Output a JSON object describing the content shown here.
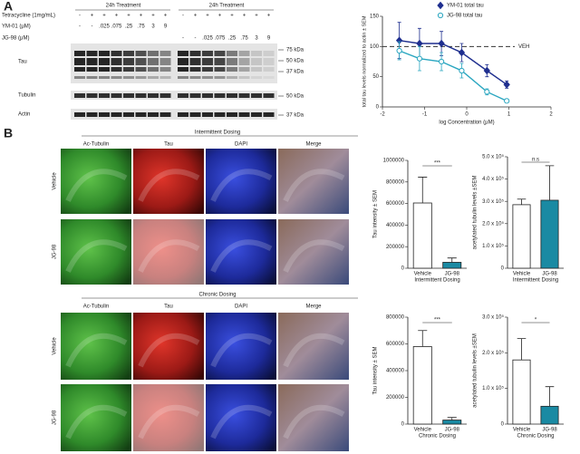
{
  "panels": [
    "A",
    "B"
  ],
  "blot": {
    "groups": [
      {
        "title": "24h Treatment",
        "tetracycline": [
          "-",
          "+",
          "+",
          "+",
          "+",
          "+",
          "+",
          "+"
        ],
        "ym01": [
          "-",
          "-",
          ".025",
          ".075",
          ".25",
          ".75",
          "3",
          "9"
        ]
      },
      {
        "title": "24h Treatment",
        "tetracycline": [
          "-",
          "+",
          "+",
          "+",
          "+",
          "+",
          "+",
          "+"
        ],
        "jg98": [
          "-",
          "-",
          ".025",
          ".075",
          ".25",
          ".75",
          "3",
          "9"
        ]
      }
    ],
    "row_labels": {
      "tetracycline": "Tetracycline (1mg/mL)",
      "ym01": "YM-01 (μM)",
      "jg98": "JG-98 (μM)"
    },
    "blots": [
      {
        "label": "Tau",
        "markers": [
          "75 kDa",
          "50 kDa",
          "37 kDa"
        ]
      },
      {
        "label": "Tubulin",
        "markers": [
          "50 kDa"
        ]
      },
      {
        "label": "Actin",
        "markers": [
          "37 kDa"
        ]
      }
    ]
  },
  "imaging": [
    {
      "title": "Intermittent Dosing",
      "columns": [
        "Ac-Tubulin",
        "Tau",
        "DAPI",
        "Merge"
      ],
      "rows": [
        "Vehicle",
        "JG-98"
      ]
    },
    {
      "title": "Chronic Dosing",
      "columns": [
        "Ac-Tubulin",
        "Tau",
        "DAPI",
        "Merge"
      ],
      "rows": [
        "Vehicle",
        "JG-98"
      ]
    }
  ],
  "chart_data": [
    {
      "type": "scatter",
      "x_label": "log Concentration (μM)",
      "y_label": "total tau levels normalized to actin ± SEM",
      "x": [
        -1.6,
        -1.12,
        -0.6,
        -0.12,
        0.48,
        0.95
      ],
      "series": [
        {
          "name": "YM-01 total tau",
          "color": "#1f2f8f",
          "marker": "diamond",
          "filled": true,
          "values": [
            110,
            105,
            105,
            90,
            60,
            37
          ],
          "errors": [
            30,
            25,
            20,
            15,
            10,
            6
          ]
        },
        {
          "name": "JG-98 total tau",
          "color": "#2aa6c0",
          "marker": "circle",
          "filled": false,
          "values": [
            93,
            80,
            75,
            60,
            25,
            10
          ],
          "errors": [
            15,
            20,
            15,
            12,
            5,
            3
          ]
        }
      ],
      "reference_line": {
        "value": 100,
        "label": "VEH"
      },
      "xlim": [
        -2,
        2
      ],
      "xticks": [
        -2,
        -1,
        0,
        1,
        2
      ],
      "ylim": [
        0,
        150
      ],
      "yticks": [
        0,
        50,
        100,
        150
      ],
      "legend": "upper right"
    },
    {
      "type": "bar",
      "x_label": "Intermittent Dosing",
      "y_label": "Tau intensity ± SEM",
      "categories": [
        "Vehicle",
        "JG-98"
      ],
      "values": [
        605000,
        55000
      ],
      "errors": [
        240000,
        40000
      ],
      "colors": [
        "#ffffff",
        "#1a8aa3"
      ],
      "annotation": "***",
      "ylim": [
        0,
        1000000
      ],
      "yticks": [
        0,
        200000,
        400000,
        600000,
        800000,
        1000000
      ]
    },
    {
      "type": "bar",
      "x_label": "Intermittent Dosing",
      "y_label": "acetylated tubulin levels ±SEM",
      "categories": [
        "Vehicle",
        "JG-98"
      ],
      "values": [
        285000,
        305000
      ],
      "errors": [
        25000,
        155000
      ],
      "colors": [
        "#ffffff",
        "#1a8aa3"
      ],
      "annotation": "n.s",
      "ylim": [
        0,
        500000
      ],
      "yticks": [
        0,
        {
          "value": 100000,
          "label": "1.0 x 10⁵"
        },
        {
          "value": 200000,
          "label": "2.0 x 10⁵"
        },
        {
          "value": 300000,
          "label": "3.0 x 10⁵"
        },
        {
          "value": 400000,
          "label": "4.0 x 10⁵"
        },
        {
          "value": 500000,
          "label": "5.0 x 10⁵"
        }
      ]
    },
    {
      "type": "bar",
      "x_label": "Chronic Dosing",
      "y_label": "Tau intensity ± SEM",
      "categories": [
        "Vehicle",
        "JG-98"
      ],
      "values": [
        580000,
        30000
      ],
      "errors": [
        120000,
        20000
      ],
      "colors": [
        "#ffffff",
        "#1a8aa3"
      ],
      "annotation": "***",
      "ylim": [
        0,
        800000
      ],
      "yticks": [
        0,
        200000,
        400000,
        600000,
        800000
      ]
    },
    {
      "type": "bar",
      "x_label": "Chronic Dosing",
      "y_label": "acetylated tubulin levels ±SEM",
      "categories": [
        "Vehicle",
        "JG-98"
      ],
      "values": [
        180000,
        50000
      ],
      "errors": [
        60000,
        55000
      ],
      "colors": [
        "#ffffff",
        "#1a8aa3"
      ],
      "annotation": "*",
      "ylim": [
        0,
        300000
      ],
      "yticks": [
        0,
        {
          "value": 100000,
          "label": "1.0 x 10⁵"
        },
        {
          "value": 200000,
          "label": "2.0 x 10⁵"
        },
        {
          "value": 300000,
          "label": "3.0 x 10⁵"
        }
      ]
    }
  ]
}
